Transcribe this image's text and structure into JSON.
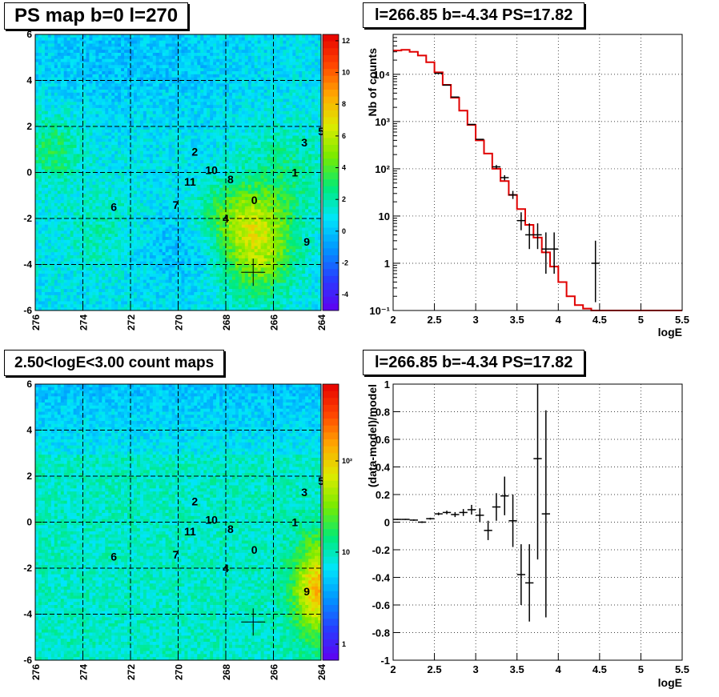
{
  "panels": {
    "ps_map": {
      "title": "PS map b=0 l=270",
      "x_ticks": [
        "276",
        "274",
        "272",
        "270",
        "268",
        "266",
        "264"
      ],
      "y_ticks": [
        "6",
        "4",
        "2",
        "0",
        "-2",
        "-4",
        "-6"
      ],
      "colorbar_ticks": [
        "12",
        "10",
        "8",
        "6",
        "4",
        "2",
        "0",
        "-2",
        "-4"
      ]
    },
    "count_map": {
      "title": "2.50<logE<3.00 count maps",
      "x_ticks": [
        "276",
        "274",
        "272",
        "270",
        "268",
        "266",
        "264"
      ],
      "y_ticks": [
        "6",
        "4",
        "2",
        "0",
        "-2",
        "-4",
        "-6"
      ],
      "colorbar_ticks": [
        "10²",
        "10",
        "1"
      ]
    },
    "spectrum": {
      "title": "l=266.85 b=-4.34 PS=17.82",
      "xlabel": "logE",
      "ylabel": "Nb of counts",
      "x_ticks": [
        "2",
        "2.5",
        "3",
        "3.5",
        "4",
        "4.5",
        "5",
        "5.5"
      ],
      "y_ticks": [
        "10⁴",
        "10³",
        "10²",
        "10",
        "1",
        "10⁻¹"
      ]
    },
    "residual": {
      "title": "l=266.85 b=-4.34 PS=17.82",
      "xlabel": "logE",
      "ylabel": "(data-model)/model",
      "x_ticks": [
        "2",
        "2.5",
        "3",
        "3.5",
        "4",
        "4.5",
        "5",
        "5.5"
      ],
      "y_ticks": [
        "1",
        "0.8",
        "0.6",
        "0.4",
        "0.2",
        "0",
        "-0.2",
        "-0.4",
        "-0.6",
        "-0.8",
        "-1"
      ]
    }
  },
  "source_labels": [
    {
      "id": "0",
      "l": 266.8,
      "b": -1.2
    },
    {
      "id": "1",
      "l": 265.1,
      "b": 0.0
    },
    {
      "id": "2",
      "l": 269.3,
      "b": 0.9
    },
    {
      "id": "3",
      "l": 264.7,
      "b": 1.3
    },
    {
      "id": "4",
      "l": 268.0,
      "b": -2.0
    },
    {
      "id": "5",
      "l": 264.0,
      "b": 1.8
    },
    {
      "id": "6",
      "l": 272.7,
      "b": -1.5
    },
    {
      "id": "7",
      "l": 270.1,
      "b": -1.4
    },
    {
      "id": "8",
      "l": 267.8,
      "b": -0.3
    },
    {
      "id": "9",
      "l": 264.6,
      "b": -3.0
    },
    {
      "id": "10",
      "l": 268.6,
      "b": 0.1
    },
    {
      "id": "11",
      "l": 269.5,
      "b": -0.4
    }
  ],
  "marker": {
    "l": 266.85,
    "b": -4.34
  },
  "chart_data": [
    {
      "type": "heatmap",
      "title": "PS map b=0 l=270",
      "x_range": [
        276,
        264
      ],
      "y_range": [
        -6,
        6
      ],
      "colorbar_range": [
        -5,
        12
      ]
    },
    {
      "type": "heatmap",
      "title": "2.50<logE<3.00 count maps",
      "x_range": [
        276,
        264
      ],
      "y_range": [
        -6,
        6
      ],
      "colorbar_scale": "log"
    },
    {
      "type": "line",
      "title": "l=266.85 b=-4.34 PS=17.82",
      "xlabel": "logE",
      "ylabel": "Nb of counts",
      "y_scale": "log",
      "xlim": [
        2,
        5.5
      ],
      "ylim": [
        0.1,
        70000
      ],
      "grid": true,
      "model_step": {
        "color": "#e00000",
        "edges": [
          2.0,
          2.1,
          2.2,
          2.3,
          2.4,
          2.5,
          2.6,
          2.7,
          2.8,
          2.9,
          3.0,
          3.1,
          3.2,
          3.3,
          3.4,
          3.5,
          3.6,
          3.7,
          3.8,
          3.9,
          4.0,
          4.1,
          4.2,
          4.3,
          4.4,
          4.5,
          5.5
        ],
        "values": [
          32000,
          33000,
          30000,
          25000,
          18000,
          11000,
          6000,
          3200,
          1700,
          850,
          400,
          210,
          100,
          55,
          28,
          14,
          6.5,
          3.5,
          1.7,
          0.85,
          0.4,
          0.2,
          0.13,
          0.11,
          0.1,
          0.1
        ]
      },
      "data_points": [
        {
          "x": 2.55,
          "y": 10500,
          "err_lo": 0,
          "err_hi": 0
        },
        {
          "x": 2.65,
          "y": 5900,
          "err_lo": 0,
          "err_hi": 0
        },
        {
          "x": 2.75,
          "y": 3300,
          "err_lo": 0,
          "err_hi": 0
        },
        {
          "x": 2.95,
          "y": 870,
          "err_lo": 0,
          "err_hi": 0
        },
        {
          "x": 3.05,
          "y": 420,
          "err_lo": 0,
          "err_hi": 0
        },
        {
          "x": 3.25,
          "y": 110,
          "err_lo": 10,
          "err_hi": 10
        },
        {
          "x": 3.35,
          "y": 65,
          "err_lo": 8,
          "err_hi": 8
        },
        {
          "x": 3.45,
          "y": 28,
          "err_lo": 5,
          "err_hi": 6
        },
        {
          "x": 3.55,
          "y": 8,
          "err_lo": 3,
          "err_hi": 4
        },
        {
          "x": 3.65,
          "y": 4,
          "err_lo": 2,
          "err_hi": 3
        },
        {
          "x": 3.75,
          "y": 4,
          "err_lo": 2,
          "err_hi": 3
        },
        {
          "x": 3.85,
          "y": 2,
          "err_lo": 1.4,
          "err_hi": 2.5
        },
        {
          "x": 3.95,
          "y": 2,
          "err_lo": 1.4,
          "err_hi": 2.5
        },
        {
          "x": 4.45,
          "y": 1,
          "err_lo": 0.85,
          "err_hi": 2
        }
      ]
    },
    {
      "type": "scatter",
      "title": "l=266.85 b=-4.34 PS=17.82",
      "xlabel": "logE",
      "ylabel": "(data-model)/model",
      "xlim": [
        2,
        5.5
      ],
      "ylim": [
        -1,
        1
      ],
      "grid": true,
      "data_points": [
        {
          "x": 2.05,
          "y": 0.02,
          "err": 0.004
        },
        {
          "x": 2.15,
          "y": 0.02,
          "err": 0.004
        },
        {
          "x": 2.25,
          "y": 0.015,
          "err": 0.005
        },
        {
          "x": 2.35,
          "y": 0.0,
          "err": 0.006
        },
        {
          "x": 2.45,
          "y": 0.025,
          "err": 0.007
        },
        {
          "x": 2.55,
          "y": 0.06,
          "err": 0.01
        },
        {
          "x": 2.65,
          "y": 0.07,
          "err": 0.013
        },
        {
          "x": 2.75,
          "y": 0.055,
          "err": 0.018
        },
        {
          "x": 2.85,
          "y": 0.07,
          "err": 0.025
        },
        {
          "x": 2.95,
          "y": 0.09,
          "err": 0.035
        },
        {
          "x": 3.05,
          "y": 0.05,
          "err": 0.05
        },
        {
          "x": 3.15,
          "y": -0.06,
          "err": 0.07
        },
        {
          "x": 3.25,
          "y": 0.11,
          "err": 0.1
        },
        {
          "x": 3.35,
          "y": 0.19,
          "err": 0.14
        },
        {
          "x": 3.45,
          "y": 0.01,
          "err": 0.19
        },
        {
          "x": 3.55,
          "y": -0.38,
          "err": 0.22
        },
        {
          "x": 3.65,
          "y": -0.44,
          "err": 0.28
        },
        {
          "x": 3.75,
          "y": 0.46,
          "err": 0.73
        },
        {
          "x": 3.85,
          "y": 0.06,
          "err": 0.75
        }
      ]
    }
  ]
}
